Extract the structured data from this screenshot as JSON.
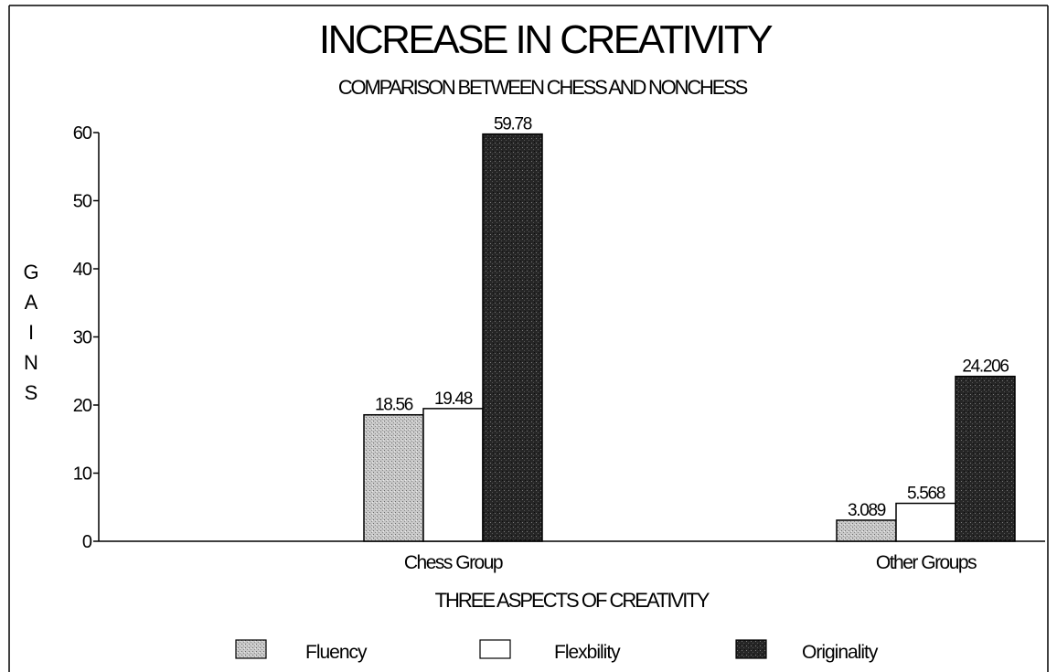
{
  "chart_data": {
    "type": "bar",
    "title": "INCREASE IN CREATIVITY",
    "subtitle": "COMPARISON BETWEEN CHESS AND NONCHESS",
    "xlabel": "THREE ASPECTS OF CREATIVITY",
    "ylabel": "GAINS",
    "ylim": [
      0,
      60
    ],
    "yticks": [
      0,
      10,
      20,
      30,
      40,
      50,
      60
    ],
    "grid": false,
    "legend_position": "bottom",
    "categories": [
      "Chess Group",
      "Other Groups"
    ],
    "series": [
      {
        "name": "Fluency",
        "values": [
          18.56,
          3.089
        ],
        "labels": [
          "18.56",
          "3.089"
        ],
        "color": "#bdbdbd",
        "pattern": "stipple-light"
      },
      {
        "name": "Flexbility",
        "values": [
          19.48,
          5.568
        ],
        "labels": [
          "19.48",
          "5.568"
        ],
        "color": "#ffffff",
        "pattern": "none"
      },
      {
        "name": "Originality",
        "values": [
          59.78,
          24.206
        ],
        "labels": [
          "59.78",
          "24.206"
        ],
        "color": "#2a2a2a",
        "pattern": "stipple-dark"
      }
    ]
  }
}
